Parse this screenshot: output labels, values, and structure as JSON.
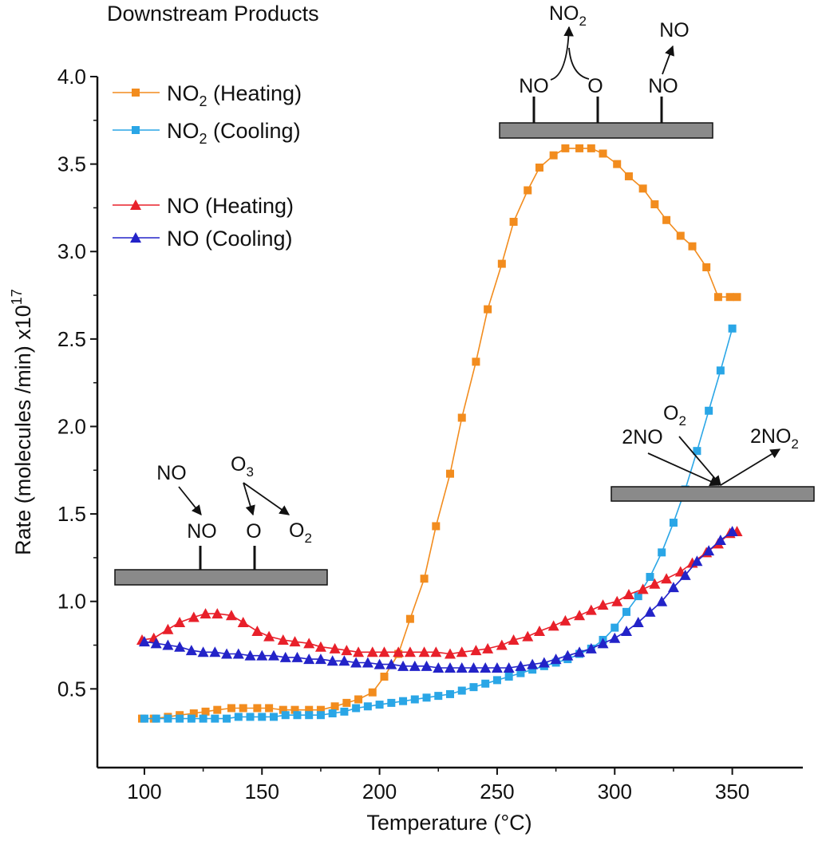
{
  "title": "Downstream Products",
  "chart_data": {
    "type": "line",
    "xlabel": "Temperature (°C)",
    "ylabel_main": "Rate (molecules /min) x10",
    "ylabel_exp": "17",
    "xlim": [
      80,
      380
    ],
    "ylim": [
      0.05,
      4.0
    ],
    "x_ticks": [
      100,
      150,
      200,
      250,
      300,
      350
    ],
    "x_ticklabels": [
      "100",
      "150",
      "200",
      "250",
      "300",
      "350"
    ],
    "y_ticks": [
      0.5,
      1.0,
      1.5,
      2.0,
      2.5,
      3.0,
      3.5,
      4.0
    ],
    "y_ticklabels": [
      "0.5",
      "1.0",
      "1.5",
      "2.0",
      "2.5",
      "3.0",
      "3.5",
      "4.0"
    ],
    "grid": false,
    "legend_position": "top-left",
    "series": [
      {
        "name": "NO2 (Heating)",
        "legend_main": "NO",
        "legend_sub": "2",
        "legend_tail": " (Heating)",
        "color": "#f28c1e",
        "marker": "square",
        "dash": "",
        "x": [
          99,
          104,
          110,
          115,
          121,
          126,
          131,
          137,
          142,
          148,
          153,
          159,
          164,
          170,
          175,
          181,
          186,
          191,
          197,
          202,
          208,
          213,
          219,
          224,
          230,
          235,
          241,
          246,
          252,
          257,
          263,
          268,
          274,
          279,
          285,
          290,
          295,
          301,
          306,
          312,
          317,
          322,
          328,
          333,
          339,
          344,
          349,
          352
        ],
        "y": [
          0.33,
          0.33,
          0.34,
          0.35,
          0.36,
          0.37,
          0.38,
          0.39,
          0.39,
          0.39,
          0.39,
          0.38,
          0.38,
          0.38,
          0.38,
          0.4,
          0.42,
          0.44,
          0.48,
          0.57,
          0.7,
          0.9,
          1.13,
          1.43,
          1.73,
          2.05,
          2.37,
          2.67,
          2.93,
          3.17,
          3.35,
          3.48,
          3.55,
          3.59,
          3.59,
          3.59,
          3.56,
          3.5,
          3.43,
          3.36,
          3.27,
          3.18,
          3.09,
          3.03,
          2.91,
          2.74,
          2.74,
          2.74
        ]
      },
      {
        "name": "NO2 (Cooling)",
        "legend_main": "NO",
        "legend_sub": "2",
        "legend_tail": " (Cooling)",
        "color": "#2aa6e6",
        "marker": "square",
        "dash": "",
        "x": [
          350,
          345,
          340,
          335,
          330,
          325,
          320,
          315,
          310,
          305,
          300,
          295,
          290,
          285,
          280,
          275,
          270,
          265,
          260,
          255,
          250,
          245,
          240,
          235,
          230,
          225,
          220,
          215,
          210,
          205,
          200,
          195,
          190,
          185,
          180,
          175,
          170,
          165,
          160,
          155,
          150,
          145,
          140,
          135,
          130,
          125,
          120,
          115,
          110,
          105,
          100
        ],
        "y": [
          2.56,
          2.32,
          2.09,
          1.86,
          1.64,
          1.45,
          1.28,
          1.14,
          1.03,
          0.94,
          0.85,
          0.78,
          0.73,
          0.7,
          0.67,
          0.65,
          0.63,
          0.61,
          0.59,
          0.57,
          0.55,
          0.53,
          0.51,
          0.49,
          0.47,
          0.46,
          0.45,
          0.44,
          0.43,
          0.42,
          0.41,
          0.4,
          0.39,
          0.37,
          0.36,
          0.35,
          0.35,
          0.35,
          0.35,
          0.34,
          0.34,
          0.34,
          0.34,
          0.33,
          0.33,
          0.33,
          0.33,
          0.33,
          0.33,
          0.33,
          0.33
        ]
      },
      {
        "name": "NO (Heating)",
        "legend_main": "NO",
        "legend_sub": "",
        "legend_tail": " (Heating)",
        "color": "#e8202a",
        "marker": "triangle",
        "dash": "",
        "x": [
          99,
          104,
          110,
          115,
          121,
          126,
          131,
          137,
          142,
          148,
          153,
          159,
          164,
          170,
          175,
          181,
          186,
          191,
          197,
          202,
          208,
          213,
          219,
          224,
          230,
          235,
          241,
          246,
          252,
          257,
          263,
          268,
          274,
          279,
          285,
          290,
          295,
          301,
          306,
          312,
          317,
          322,
          328,
          333,
          339,
          344,
          349,
          352
        ],
        "y": [
          0.78,
          0.79,
          0.84,
          0.88,
          0.91,
          0.93,
          0.93,
          0.92,
          0.88,
          0.83,
          0.8,
          0.78,
          0.77,
          0.76,
          0.74,
          0.73,
          0.72,
          0.71,
          0.71,
          0.71,
          0.71,
          0.71,
          0.71,
          0.71,
          0.7,
          0.71,
          0.72,
          0.73,
          0.75,
          0.78,
          0.8,
          0.83,
          0.86,
          0.89,
          0.92,
          0.95,
          0.98,
          1.0,
          1.04,
          1.07,
          1.1,
          1.13,
          1.17,
          1.22,
          1.28,
          1.33,
          1.39,
          1.4
        ]
      },
      {
        "name": "NO (Cooling)",
        "legend_main": "NO",
        "legend_sub": "",
        "legend_tail": " (Cooling)",
        "color": "#2323c8",
        "marker": "triangle",
        "dash": "",
        "x": [
          350,
          345,
          340,
          335,
          330,
          325,
          320,
          315,
          310,
          305,
          300,
          295,
          290,
          285,
          280,
          275,
          270,
          265,
          260,
          255,
          250,
          245,
          240,
          235,
          230,
          225,
          220,
          215,
          210,
          205,
          200,
          195,
          190,
          185,
          180,
          175,
          170,
          165,
          160,
          155,
          150,
          145,
          140,
          135,
          130,
          125,
          120,
          115,
          110,
          105,
          100
        ],
        "y": [
          1.4,
          1.35,
          1.29,
          1.23,
          1.15,
          1.08,
          1.0,
          0.94,
          0.88,
          0.83,
          0.79,
          0.76,
          0.73,
          0.71,
          0.69,
          0.67,
          0.65,
          0.64,
          0.63,
          0.62,
          0.62,
          0.62,
          0.62,
          0.62,
          0.62,
          0.62,
          0.63,
          0.63,
          0.63,
          0.64,
          0.64,
          0.65,
          0.65,
          0.66,
          0.66,
          0.67,
          0.67,
          0.68,
          0.68,
          0.69,
          0.69,
          0.69,
          0.7,
          0.7,
          0.71,
          0.71,
          0.72,
          0.74,
          0.75,
          0.76,
          0.77
        ]
      }
    ],
    "annotations": {
      "top": {
        "no_left": "NO",
        "o": "O",
        "no_right": "NO",
        "no2_main": "NO",
        "no2_sub": "2",
        "no_out": "NO"
      },
      "bottom_left": {
        "no_gas": "NO",
        "no_surf": "NO",
        "o3_main": "O",
        "o3_sub": "3",
        "o_surf": "O",
        "o2_main": "O",
        "o2_sub": "2"
      },
      "right": {
        "two_no": "2NO",
        "o2_main": "O",
        "o2_sub": "2",
        "two_no2_main": "2NO",
        "two_no2_sub": "2"
      }
    }
  }
}
